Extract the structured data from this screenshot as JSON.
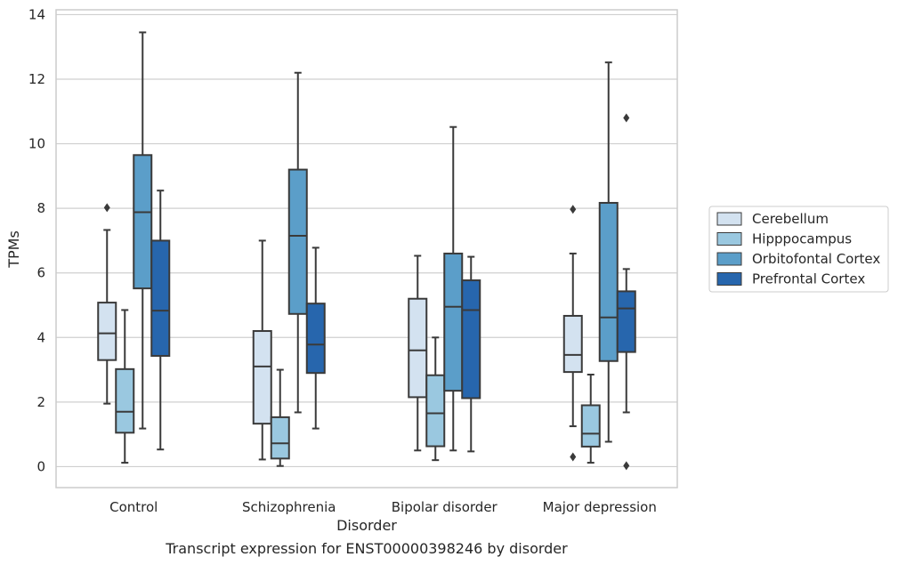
{
  "chart_data": {
    "type": "box",
    "title": "",
    "caption": "Transcript expression for ENST00000398246 by disorder",
    "xlabel": "Disorder",
    "ylabel": "TPMs",
    "ylim": [
      -0.65,
      14.15
    ],
    "yticks": [
      0,
      2,
      4,
      6,
      8,
      10,
      12,
      14
    ],
    "grid": true,
    "legend_position": "right",
    "categories": [
      "Control",
      "Schizophrenia",
      "Bipolar disorder",
      "Major depression"
    ],
    "series": [
      {
        "name": "Cerebellum",
        "color": "#d3e2f0",
        "boxes": [
          {
            "whisker_low": 1.95,
            "q1": 3.3,
            "median": 4.13,
            "q3": 5.08,
            "whisker_high": 7.33,
            "outliers": [
              8.02
            ]
          },
          {
            "whisker_low": 0.22,
            "q1": 1.33,
            "median": 3.1,
            "q3": 4.2,
            "whisker_high": 7.0,
            "outliers": []
          },
          {
            "whisker_low": 0.5,
            "q1": 2.15,
            "median": 3.6,
            "q3": 5.2,
            "whisker_high": 6.53,
            "outliers": []
          },
          {
            "whisker_low": 1.25,
            "q1": 2.93,
            "median": 3.46,
            "q3": 4.67,
            "whisker_high": 6.6,
            "outliers": [
              0.3,
              7.97
            ]
          }
        ]
      },
      {
        "name": "Hipppocampus",
        "color": "#9ac8e0",
        "boxes": [
          {
            "whisker_low": 0.12,
            "q1": 1.05,
            "median": 1.7,
            "q3": 3.02,
            "whisker_high": 4.85,
            "outliers": []
          },
          {
            "whisker_low": 0.02,
            "q1": 0.25,
            "median": 0.72,
            "q3": 1.53,
            "whisker_high": 3.0,
            "outliers": []
          },
          {
            "whisker_low": 0.2,
            "q1": 0.63,
            "median": 1.65,
            "q3": 2.83,
            "whisker_high": 4.0,
            "outliers": []
          },
          {
            "whisker_low": 0.12,
            "q1": 0.62,
            "median": 1.02,
            "q3": 1.9,
            "whisker_high": 2.85,
            "outliers": []
          }
        ]
      },
      {
        "name": "Orbitofontal Cortex",
        "color": "#5b9ec9",
        "boxes": [
          {
            "whisker_low": 1.18,
            "q1": 5.52,
            "median": 7.88,
            "q3": 9.65,
            "whisker_high": 13.45,
            "outliers": []
          },
          {
            "whisker_low": 1.68,
            "q1": 4.73,
            "median": 7.15,
            "q3": 9.2,
            "whisker_high": 12.2,
            "outliers": []
          },
          {
            "whisker_low": 0.5,
            "q1": 2.35,
            "median": 4.95,
            "q3": 6.6,
            "whisker_high": 10.52,
            "outliers": []
          },
          {
            "whisker_low": 0.77,
            "q1": 3.27,
            "median": 4.62,
            "q3": 8.17,
            "whisker_high": 12.52,
            "outliers": []
          }
        ]
      },
      {
        "name": "Prefrontal Cortex",
        "color": "#2766ad",
        "boxes": [
          {
            "whisker_low": 0.53,
            "q1": 3.43,
            "median": 4.83,
            "q3": 7.0,
            "whisker_high": 8.55,
            "outliers": []
          },
          {
            "whisker_low": 1.18,
            "q1": 2.9,
            "median": 3.78,
            "q3": 5.05,
            "whisker_high": 6.78,
            "outliers": []
          },
          {
            "whisker_low": 0.47,
            "q1": 2.12,
            "median": 4.85,
            "q3": 5.77,
            "whisker_high": 6.5,
            "outliers": []
          },
          {
            "whisker_low": 1.68,
            "q1": 3.55,
            "median": 4.9,
            "q3": 5.43,
            "whisker_high": 6.12,
            "outliers": [
              0.03,
              10.8
            ]
          }
        ]
      }
    ]
  },
  "colors": {
    "box_edge": "#3a3a3a",
    "grid": "#cfcfcf",
    "spine": "#cccccc",
    "text": "#262626"
  }
}
